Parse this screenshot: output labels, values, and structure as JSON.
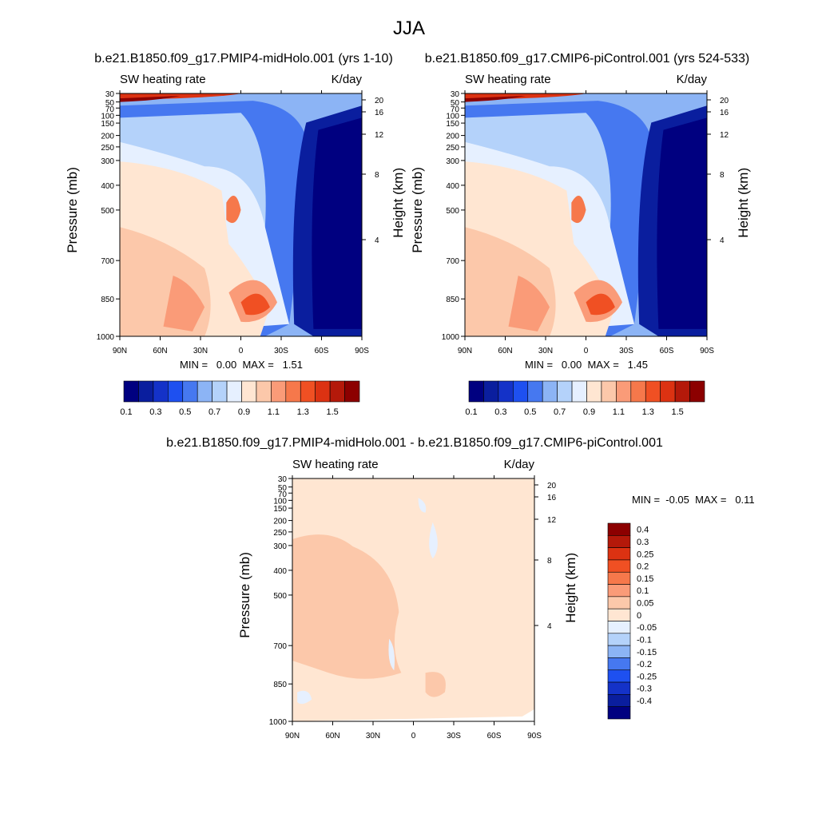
{
  "figure": {
    "title": "JJA"
  },
  "chart_data": [
    {
      "type": "heatmap",
      "title": "b.e21.B1850.f09_g17.PMIP4-midHolo.001 (yrs 1-10)",
      "left_label": "SW heating rate",
      "right_label": "K/day",
      "xlabel": "",
      "ylabel": "Pressure (mb)",
      "ylabel_right": "Height (km)",
      "x_ticks": [
        "90N",
        "60N",
        "30N",
        "0",
        "30S",
        "60S",
        "90S"
      ],
      "y_ticks": [
        "30",
        "50",
        "70",
        "100",
        "150",
        "200",
        "250",
        "300",
        "400",
        "500",
        "700",
        "850",
        "1000"
      ],
      "y_ticks_right": [
        "20",
        "16",
        "12",
        "8",
        "4"
      ],
      "stats_text": "MIN =   0.00  MAX =   1.51",
      "min": 0.0,
      "max": 1.51,
      "colorbar_orientation": "horizontal",
      "colorbar_labels": [
        "0.1",
        "0.3",
        "0.5",
        "0.7",
        "0.9",
        "1.1",
        "1.3",
        "1.5"
      ],
      "colorbar_colors": [
        "#000080",
        "#0a1e9e",
        "#1432c8",
        "#1e50f0",
        "#4678f0",
        "#8cb4f5",
        "#b4d2fa",
        "#e6f0ff",
        "#ffe6d2",
        "#fcc8aa",
        "#fa9b78",
        "#f6784b",
        "#f05023",
        "#dc3212",
        "#b4190a",
        "#8c0000"
      ]
    },
    {
      "type": "heatmap",
      "title": "b.e21.B1850.f09_g17.CMIP6-piControl.001 (yrs 524-533)",
      "left_label": "SW heating rate",
      "right_label": "K/day",
      "xlabel": "",
      "ylabel": "Pressure (mb)",
      "ylabel_right": "Height (km)",
      "x_ticks": [
        "90N",
        "60N",
        "30N",
        "0",
        "30S",
        "60S",
        "90S"
      ],
      "y_ticks": [
        "30",
        "50",
        "70",
        "100",
        "150",
        "200",
        "250",
        "300",
        "400",
        "500",
        "700",
        "850",
        "1000"
      ],
      "y_ticks_right": [
        "20",
        "16",
        "12",
        "8",
        "4"
      ],
      "stats_text": "MIN =   0.00  MAX =   1.45",
      "min": 0.0,
      "max": 1.45,
      "colorbar_orientation": "horizontal",
      "colorbar_labels": [
        "0.1",
        "0.3",
        "0.5",
        "0.7",
        "0.9",
        "1.1",
        "1.3",
        "1.5"
      ],
      "colorbar_colors": [
        "#000080",
        "#0a1e9e",
        "#1432c8",
        "#1e50f0",
        "#4678f0",
        "#8cb4f5",
        "#b4d2fa",
        "#e6f0ff",
        "#ffe6d2",
        "#fcc8aa",
        "#fa9b78",
        "#f6784b",
        "#f05023",
        "#dc3212",
        "#b4190a",
        "#8c0000"
      ]
    },
    {
      "type": "heatmap",
      "title": "b.e21.B1850.f09_g17.PMIP4-midHolo.001 - b.e21.B1850.f09_g17.CMIP6-piControl.001",
      "left_label": "SW heating rate",
      "right_label": "K/day",
      "xlabel": "",
      "ylabel": "Pressure (mb)",
      "ylabel_right": "Height (km)",
      "x_ticks": [
        "90N",
        "60N",
        "30N",
        "0",
        "30S",
        "60S",
        "90S"
      ],
      "y_ticks": [
        "30",
        "50",
        "70",
        "100",
        "150",
        "200",
        "250",
        "300",
        "400",
        "500",
        "700",
        "850",
        "1000"
      ],
      "y_ticks_right": [
        "20",
        "16",
        "12",
        "8",
        "4"
      ],
      "stats_text": "MIN =  -0.05  MAX =   0.11",
      "min": -0.05,
      "max": 0.11,
      "colorbar_orientation": "vertical",
      "colorbar_labels": [
        "0.4",
        "0.3",
        "0.25",
        "0.2",
        "0.15",
        "0.1",
        "0.05",
        "0",
        "-0.05",
        "-0.1",
        "-0.15",
        "-0.2",
        "-0.25",
        "-0.3",
        "-0.4"
      ],
      "colorbar_colors": [
        "#8c0000",
        "#b4190a",
        "#dc3212",
        "#f05023",
        "#f6784b",
        "#fa9b78",
        "#fcc8aa",
        "#ffe6d2",
        "#e6f0ff",
        "#b4d2fa",
        "#8cb4f5",
        "#4678f0",
        "#1e50f0",
        "#1432c8",
        "#0a1e9e",
        "#000080"
      ]
    }
  ]
}
